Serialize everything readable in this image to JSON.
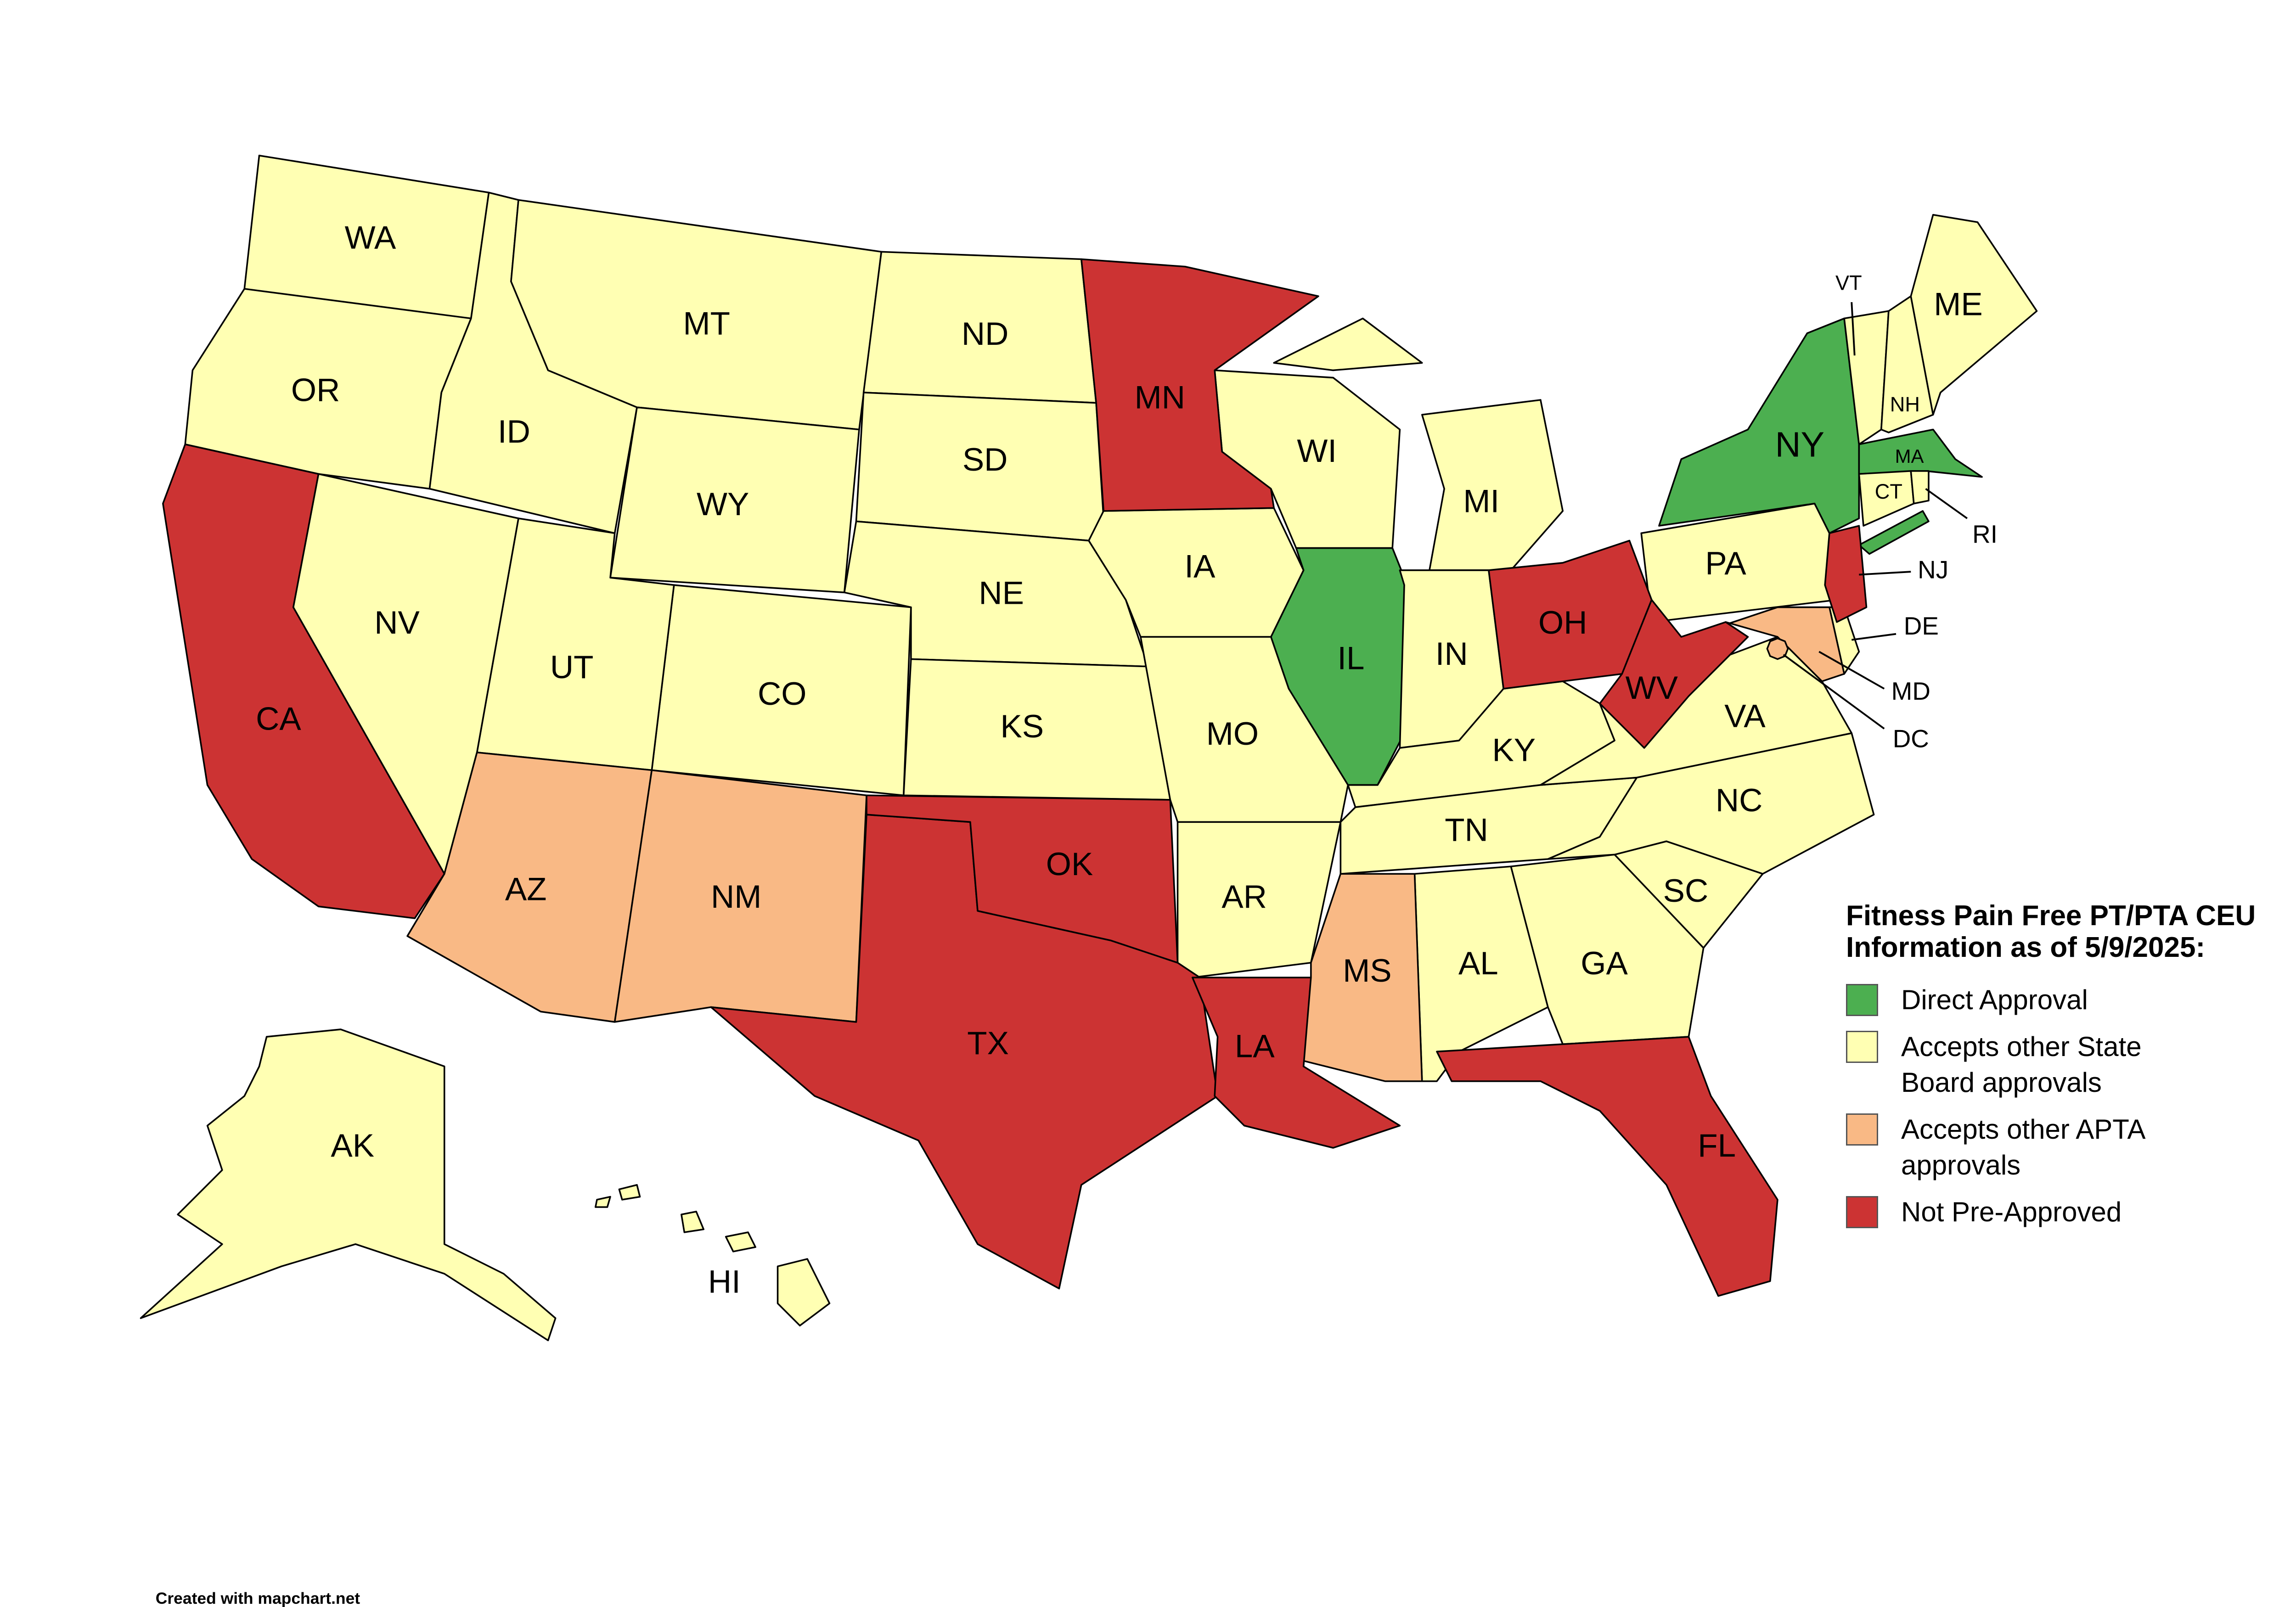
{
  "legend": {
    "title": "Fitness Pain Free PT/PTA CEU Information as of 5/9/2025:",
    "items": [
      {
        "label": "Direct Approval",
        "color": "#4caf50",
        "states": [
          "NY",
          "MA",
          "IL"
        ]
      },
      {
        "label": "Accepts other State Board approvals",
        "color": "#ffffb3",
        "states": [
          "WA",
          "OR",
          "ID",
          "MT",
          "WY",
          "ND",
          "SD",
          "NE",
          "KS",
          "CO",
          "UT",
          "NV",
          "IA",
          "MO",
          "AR",
          "WI",
          "MI",
          "IN",
          "KY",
          "TN",
          "AL",
          "GA",
          "SC",
          "NC",
          "VA",
          "PA",
          "VT",
          "NH",
          "ME",
          "CT",
          "RI",
          "DE",
          "AK",
          "HI"
        ]
      },
      {
        "label": "Accepts other APTA approvals",
        "color": "#f9b985",
        "states": [
          "AZ",
          "NM",
          "MS",
          "MD",
          "DC"
        ]
      },
      {
        "label": "Not Pre-Approved",
        "color": "#cc3333",
        "states": [
          "CA",
          "TX",
          "OK",
          "LA",
          "FL",
          "MN",
          "OH",
          "WV",
          "NJ"
        ]
      }
    ]
  },
  "footer": "Created with mapchart.net"
}
